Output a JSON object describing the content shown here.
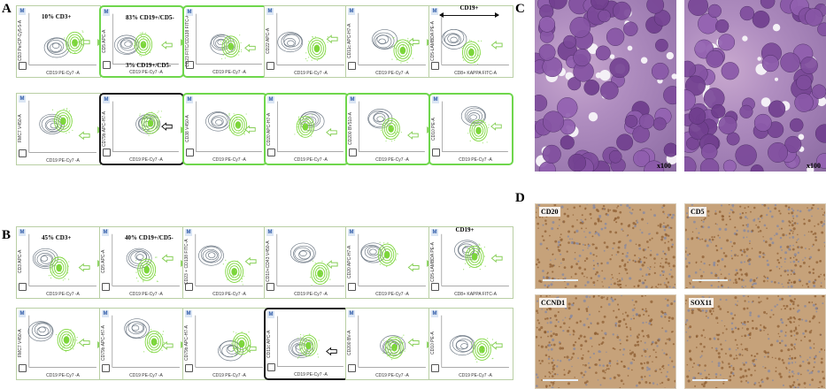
{
  "panels": {
    "A": "A",
    "B": "B",
    "C": "C",
    "D": "D"
  },
  "badge": "M",
  "flowA": [
    {
      "ylabel": "CD3 PerCP-Cy5-5-A",
      "xlabel": "CD19 PE-Cy7 -A",
      "note1": "10% CD3+",
      "note2": "",
      "sel": "",
      "gates": 1
    },
    {
      "ylabel": "CD5 APC-A",
      "xlabel": "CD19 PE-Cy7 -A",
      "note1": "83% CD19+/CD5-",
      "note2": "3% CD19+/CD5-",
      "sel": "green",
      "gates": 2
    },
    {
      "ylabel": "CD23 FITC/CD138 FITC-A",
      "xlabel": "CD19 PE-Cy7 -A",
      "note1": "",
      "note2": "",
      "sel": "green",
      "gates": 1
    },
    {
      "ylabel": "CD22 APC-A",
      "xlabel": "CD19 PE-Cy7 -A",
      "note1": "",
      "note2": "",
      "sel": "",
      "gates": 1
    },
    {
      "ylabel": "CD11c APC-H7-A",
      "xlabel": "CD19 PE-Cy7 -A",
      "note1": "",
      "note2": "",
      "sel": "",
      "gates": 1
    },
    {
      "ylabel": "CD5-LAMBDA PE-A",
      "xlabel": "CD8+ KAPPA FITC-A",
      "note1": "",
      "note2": "",
      "sel": "",
      "gates": 1
    },
    {
      "ylabel": "FMC7 V450-A",
      "xlabel": "CD19 PE-Cy7 -A",
      "note1": "",
      "note2": "",
      "sel": "",
      "gates": 1
    },
    {
      "ylabel": "CD79b APC-H7-A",
      "xlabel": "CD19 PE-Cy7 -A",
      "note1": "",
      "note2": "",
      "sel": "black",
      "gates": 1
    },
    {
      "ylabel": "CD38 V450-A",
      "xlabel": "CD19 PE-Cy7 -A",
      "note1": "",
      "note2": "",
      "sel": "green",
      "gates": 1
    },
    {
      "ylabel": "CD20 APC-H7-A",
      "xlabel": "CD19 PE-Cy7 -A",
      "note1": "",
      "note2": "",
      "sel": "green",
      "gates": 1
    },
    {
      "ylabel": "CD200 BV510-A",
      "xlabel": "CD19 PE-Cy7 -A",
      "note1": "",
      "note2": "",
      "sel": "green",
      "gates": 1
    },
    {
      "ylabel": "CD10 PE-A",
      "xlabel": "CD19 PE-Cy7 -A",
      "note1": "",
      "note2": "",
      "sel": "green",
      "gates": 1
    }
  ],
  "flowB": [
    {
      "ylabel": "CD3 APC-A",
      "xlabel": "CD19 PE-Cy7 -A",
      "note1": "45% CD3+",
      "note2": "",
      "sel": "",
      "gates": 1
    },
    {
      "ylabel": "CD5 APC-A",
      "xlabel": "CD19 PE-Cy7 -A",
      "note1": "40% CD19+/CD5-",
      "note2": "",
      "sel": "",
      "gates": 1
    },
    {
      "ylabel": "CD23 + CD138 FITC-A",
      "xlabel": "CD19 PE-Cy7 -A",
      "note1": "",
      "note2": "",
      "sel": "",
      "gates": 1
    },
    {
      "ylabel": "CD10+CD43 V450-A",
      "xlabel": "CD19 PE-Cy7 -A",
      "note1": "",
      "note2": "",
      "sel": "",
      "gates": 1
    },
    {
      "ylabel": "CD20 APC-H7-A",
      "xlabel": "CD19 PE-Cy7 -A",
      "note1": "",
      "note2": "",
      "sel": "",
      "gates": 1
    },
    {
      "ylabel": "CD5-LAMBDA PE-A",
      "xlabel": "CD8+ KAPPA FITC-A",
      "note1": "",
      "note2": "",
      "sel": "",
      "gates": 1
    },
    {
      "ylabel": "FMC7 V450-A",
      "xlabel": "CD19 PE-Cy7 -A",
      "note1": "",
      "note2": "",
      "sel": "",
      "gates": 1
    },
    {
      "ylabel": "CD79b APC-H7-A",
      "xlabel": "CD19 PE-Cy7 -A",
      "note1": "",
      "note2": "",
      "sel": "",
      "gates": 1
    },
    {
      "ylabel": "CD79b APC-H7-A",
      "xlabel": "CD19 PE-Cy7 -A",
      "note1": "",
      "note2": "",
      "sel": "",
      "gates": 1
    },
    {
      "ylabel": "CD11c APC-A",
      "xlabel": "CD19 PE-Cy7 -A",
      "note1": "",
      "note2": "",
      "sel": "black",
      "gates": 1
    },
    {
      "ylabel": "CD200 BV-A",
      "xlabel": "CD19 PE-Cy7 -A",
      "note1": "",
      "note2": "",
      "sel": "",
      "gates": 1
    },
    {
      "ylabel": "CD10 PE-A",
      "xlabel": "CD19 PE-Cy7 -A",
      "note1": "",
      "note2": "",
      "sel": "",
      "gates": 1
    }
  ],
  "cd19_header_A": "CD19+",
  "cd19_header_B": "CD19+",
  "micrographs": {
    "mag_left": "x100",
    "mag_right": "x100"
  },
  "ihc": [
    {
      "label": "CD20"
    },
    {
      "label": "CD5"
    },
    {
      "label": "CCND1"
    },
    {
      "label": "SOX11"
    }
  ],
  "colors": {
    "gate_green": "#7cd63a",
    "contour_gray": "#6f7a86",
    "select_green": "#6fd64c",
    "ihc_brown": "#b68a5a"
  }
}
